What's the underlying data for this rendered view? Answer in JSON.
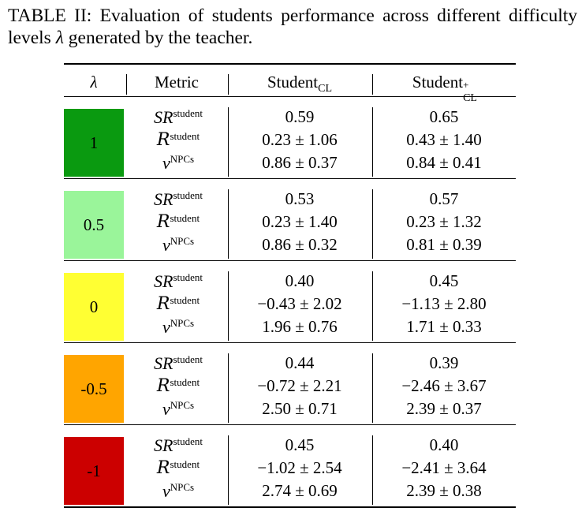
{
  "caption": {
    "label": "TABLE II:",
    "text_part1": "Evaluation of students performance across different difficulty levels",
    "symbol": "λ",
    "text_part2": "generated by the teacher."
  },
  "header": {
    "lambda": "λ",
    "metric": "Metric",
    "col1": {
      "base": "Student",
      "sub": "CL"
    },
    "col2": {
      "base": "Student",
      "sup": "+",
      "sub": "CL"
    }
  },
  "metric_labels": [
    {
      "symbol": "SR",
      "sup": "student"
    },
    {
      "symbol": "R",
      "sup": "student"
    },
    {
      "symbol": "v",
      "sup": "NPCs"
    }
  ],
  "groups": [
    {
      "lambda": "1",
      "color": "#0a9a10",
      "col1": [
        "0.59",
        "0.23 ± 1.06",
        "0.86 ± 0.37"
      ],
      "col2": [
        "0.65",
        "0.43 ± 1.40",
        "0.84 ± 0.41"
      ]
    },
    {
      "lambda": "0.5",
      "color": "#9af59a",
      "col1": [
        "0.53",
        "0.23 ± 1.40",
        "0.86 ± 0.32"
      ],
      "col2": [
        "0.57",
        "0.23 ± 1.32",
        "0.81 ± 0.39"
      ]
    },
    {
      "lambda": "0",
      "color": "#ffff33",
      "col1": [
        "0.40",
        "−0.43 ± 2.02",
        "1.96 ± 0.76"
      ],
      "col2": [
        "0.45",
        "−1.13 ± 2.80",
        "1.71 ± 0.33"
      ]
    },
    {
      "lambda": "-0.5",
      "color": "#ffa500",
      "col1": [
        "0.44",
        "−0.72 ± 2.21",
        "2.50 ± 0.71"
      ],
      "col2": [
        "0.39",
        "−2.46 ± 3.67",
        "2.39 ± 0.37"
      ]
    },
    {
      "lambda": "-1",
      "color": "#cc0000",
      "col1": [
        "0.45",
        "−1.02 ± 2.54",
        "2.74 ± 0.69"
      ],
      "col2": [
        "0.40",
        "−2.41 ± 3.64",
        "2.39 ± 0.38"
      ]
    }
  ]
}
